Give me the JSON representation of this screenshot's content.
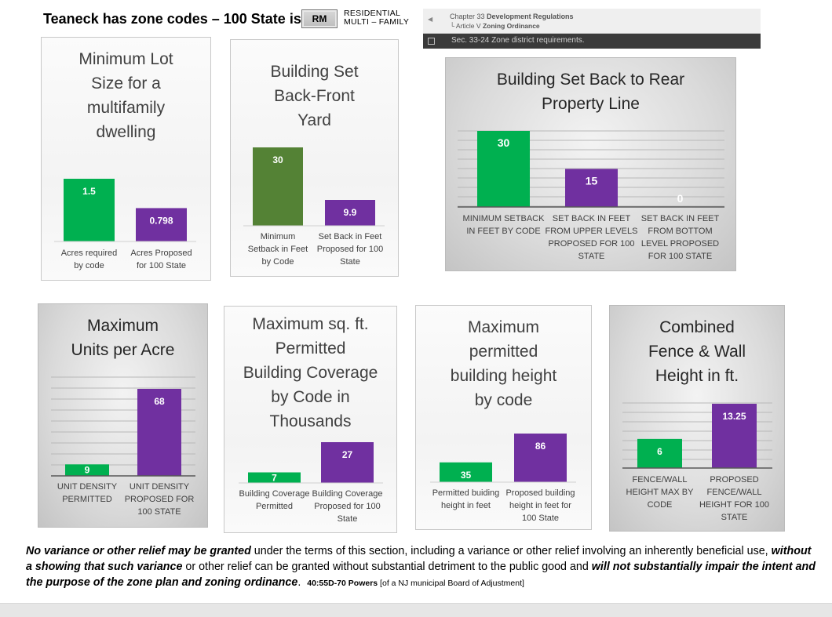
{
  "header": {
    "headline": "Teaneck has zone codes – 100 State is ir",
    "zone_badge": "RM",
    "zone_label_line1": "RESIDENTIAL",
    "zone_label_line2": "MULTI  –  FAMILY"
  },
  "code_nav": {
    "chapter_prefix": "Chapter 33",
    "chapter_title": "Development Regulations",
    "article_prefix": "└ Article V",
    "article_title": "Zoning Ordinance",
    "section": "Sec. 33-24 Zone district requirements.",
    "back_icon": "triangle-left-icon",
    "checkbox_icon": "checkbox-icon"
  },
  "colors": {
    "green": "#00b050",
    "dark_green": "#548235",
    "purple": "#7030a0"
  },
  "chart_data": [
    {
      "id": "lot-size",
      "type": "bar",
      "title": [
        "Minimum Lot",
        "Size for a",
        "multifamily",
        "dwelling"
      ],
      "categories": [
        [
          "Acres required",
          "by code"
        ],
        [
          "Acres Proposed",
          "for 100 State"
        ]
      ],
      "values": [
        1.5,
        0.798
      ],
      "labels": [
        "1.5",
        "0.798"
      ],
      "colors": [
        "#00b050",
        "#7030a0"
      ],
      "ylim": [
        0,
        1.6
      ],
      "grid": false,
      "style": "light"
    },
    {
      "id": "front-setback",
      "type": "bar",
      "title": [
        "Building Set",
        "Back-Front",
        "Yard"
      ],
      "categories": [
        [
          "Minimum",
          "Setback in Feet",
          "by Code"
        ],
        [
          "Set Back in Feet",
          "Proposed for 100",
          "State"
        ]
      ],
      "values": [
        30,
        9.9
      ],
      "labels": [
        "30",
        "9.9"
      ],
      "colors": [
        "#548235",
        "#7030a0"
      ],
      "ylim": [
        0,
        31
      ],
      "grid": false,
      "style": "light"
    },
    {
      "id": "rear-setback",
      "type": "bar",
      "title": [
        "Building Set Back to Rear",
        "Property Line"
      ],
      "categories": [
        [
          "MINIMUM SETBACK",
          "IN FEET BY CODE"
        ],
        [
          "SET BACK IN FEET",
          "FROM UPPER LEVELS",
          "PROPOSED FOR 100",
          "STATE"
        ],
        [
          "SET BACK IN FEET",
          "FROM BOTTOM",
          "LEVEL PROPOSED",
          "FOR 100 STATE"
        ]
      ],
      "values": [
        30,
        15,
        0
      ],
      "labels": [
        "30",
        "15",
        "0"
      ],
      "colors": [
        "#00b050",
        "#7030a0",
        "#7030a0"
      ],
      "ylim": [
        0,
        35
      ],
      "grid": true,
      "style": "dark"
    },
    {
      "id": "units-per-acre",
      "type": "bar",
      "title": [
        "Maximum",
        "Units per Acre"
      ],
      "categories": [
        [
          "UNIT DENSITY",
          "PERMITTED"
        ],
        [
          "UNIT DENSITY",
          "PROPOSED FOR",
          "100 STATE"
        ]
      ],
      "values": [
        9,
        68
      ],
      "labels": [
        "9",
        "68"
      ],
      "colors": [
        "#00b050",
        "#7030a0"
      ],
      "ylim": [
        0,
        80
      ],
      "grid": true,
      "style": "dark"
    },
    {
      "id": "building-coverage",
      "type": "bar",
      "title": [
        "Maximum sq. ft.",
        "Permitted",
        "Building Coverage",
        "by Code in",
        "Thousands"
      ],
      "categories": [
        [
          "Building Coverage",
          "Permitted"
        ],
        [
          "Building Coverage",
          "Proposed for 100",
          "State"
        ]
      ],
      "values": [
        7,
        27
      ],
      "labels": [
        "7",
        "27"
      ],
      "colors": [
        "#00b050",
        "#7030a0"
      ],
      "ylim": [
        0,
        28
      ],
      "grid": false,
      "style": "light"
    },
    {
      "id": "building-height",
      "type": "bar",
      "title": [
        "Maximum",
        "permitted",
        "building height",
        "by code"
      ],
      "categories": [
        [
          "Permitted buiding",
          "height in feet"
        ],
        [
          "Proposed building",
          "height in feet for",
          "100 State"
        ]
      ],
      "values": [
        35,
        86
      ],
      "labels": [
        "35",
        "86"
      ],
      "colors": [
        "#00b050",
        "#7030a0"
      ],
      "ylim": [
        0,
        88
      ],
      "grid": false,
      "style": "light"
    },
    {
      "id": "fence-height",
      "type": "bar",
      "title": [
        "Combined",
        "Fence & Wall",
        "Height in ft."
      ],
      "categories": [
        [
          "FENCE/WALL",
          "HEIGHT MAX BY",
          "CODE"
        ],
        [
          "PROPOSED",
          "FENCE/WALL",
          "HEIGHT FOR 100",
          "STATE"
        ]
      ],
      "values": [
        6,
        13.25
      ],
      "labels": [
        "6",
        "13.25"
      ],
      "colors": [
        "#00b050",
        "#7030a0"
      ],
      "ylim": [
        0,
        14
      ],
      "grid": true,
      "style": "dark"
    }
  ],
  "footer": {
    "p1_bold": "No variance or other relief may be granted",
    "p2": " under the terms of this section, including a variance or other relief involving an inherently beneficial use, ",
    "p3_bold": "without a showing that such variance",
    "p4": " or other relief can be granted without substantial detriment to the public good and ",
    "p5_bold": "will not substantially impair the intent and the purpose of the zone plan and zoning ordinance",
    "p6": ".",
    "citation_bold": "40:55D-70  Powers",
    "citation": " [of a NJ municipal Board of Adjustment]"
  }
}
